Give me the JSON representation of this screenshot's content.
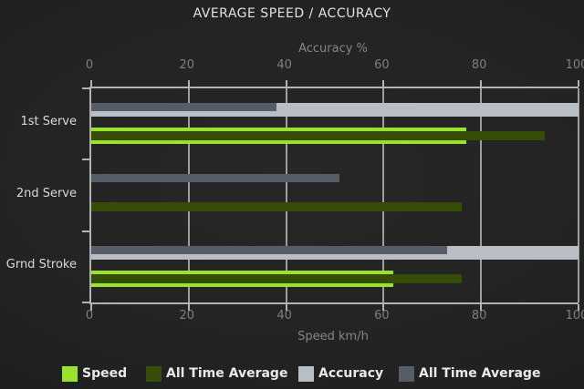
{
  "title": "AVERAGE SPEED / ACCURACY",
  "colors": {
    "speed": "#9ae22b",
    "speed_all_time": "#364d07",
    "accuracy": "#b9bec4",
    "accuracy_all_time": "#565d68",
    "background": "#222222",
    "axis_line": "#b3b3b3",
    "gridline": "#9e9e9e"
  },
  "chart_data": {
    "type": "bar",
    "orientation": "horizontal",
    "title": "AVERAGE SPEED / ACCURACY",
    "categories": [
      "1st Serve",
      "2nd Serve",
      "Grnd Stroke"
    ],
    "series": [
      {
        "name": "Speed",
        "color": "#9ae22b",
        "values": [
          77,
          0,
          62
        ]
      },
      {
        "name": "All Time Average",
        "color": "#364d07",
        "values": [
          93,
          76,
          76
        ]
      },
      {
        "name": "Accuracy",
        "color": "#b9bec4",
        "values": [
          100,
          0,
          100
        ]
      },
      {
        "name": "All Time Average",
        "color": "#565d68",
        "values": [
          38,
          51,
          73
        ]
      }
    ],
    "top_axis": {
      "label": "Accuracy %",
      "ticks": [
        0,
        20,
        40,
        60,
        80,
        100
      ],
      "range": [
        0,
        100
      ]
    },
    "bottom_axis": {
      "label": "Speed km/h",
      "ticks": [
        0,
        20,
        40,
        60,
        80,
        100
      ],
      "range": [
        0,
        100
      ]
    },
    "grid": true,
    "legend_position": "bottom"
  }
}
